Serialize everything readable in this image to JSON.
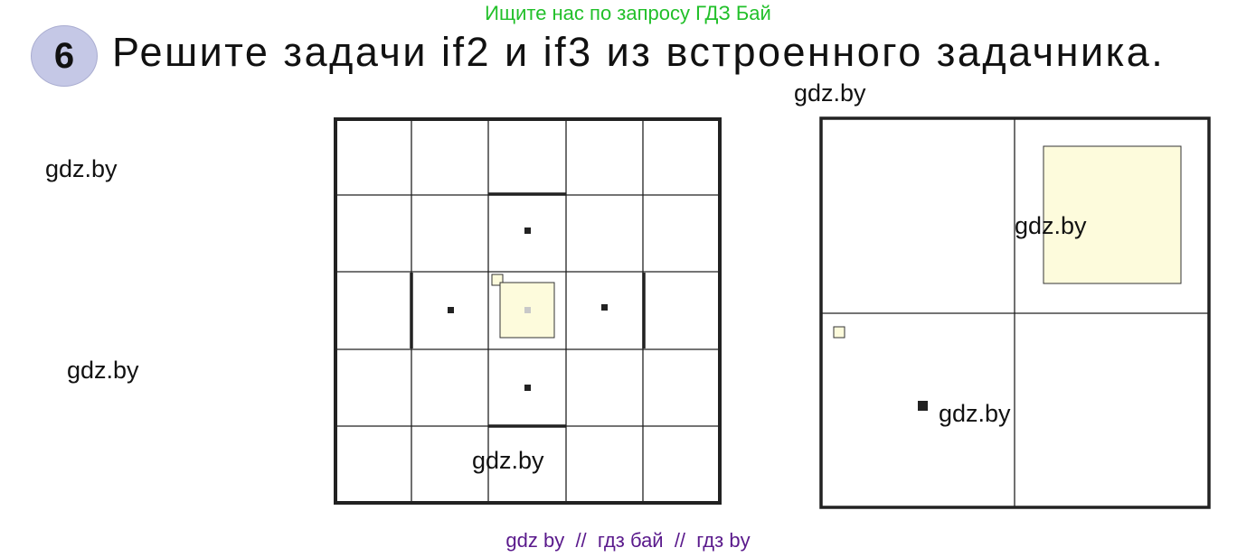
{
  "header": {
    "search_hint": "Ищите нас по запросу ГДЗ Бай",
    "task_number": "6",
    "task_text": "Решите задачи if2 и if3 из встроенного задачника."
  },
  "watermarks": [
    "gdz.by",
    "gdz.by",
    "gdz.by",
    "gdz.by",
    "gdz.by",
    "gdz.by"
  ],
  "footer": {
    "text": "gdz by  //  гдз бай  //  гдз by"
  },
  "colors": {
    "highlight_fill": "#fdfbdc",
    "badge": "#c5c8e6",
    "hint": "#22c02a",
    "footer": "#5a1a8c"
  }
}
